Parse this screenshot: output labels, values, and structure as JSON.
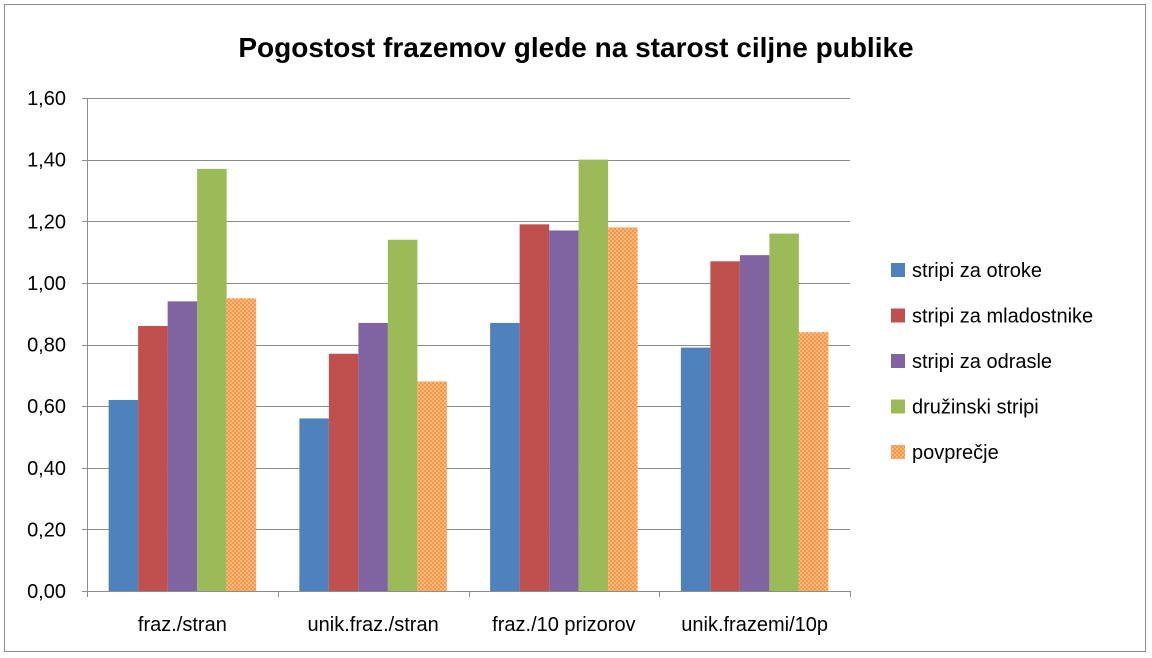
{
  "chart_data": {
    "type": "bar",
    "title": "Pogostost frazemov glede na starost ciljne publike",
    "xlabel": "",
    "ylabel": "",
    "ylim": [
      0,
      1.6
    ],
    "yticks": [
      "0,00",
      "0,20",
      "0,40",
      "0,60",
      "0,80",
      "1,00",
      "1,20",
      "1,40",
      "1,60"
    ],
    "ytick_values": [
      0,
      0.2,
      0.4,
      0.6,
      0.8,
      1.0,
      1.2,
      1.4,
      1.6
    ],
    "grid": true,
    "legend_position": "right",
    "categories": [
      "fraz./stran",
      "unik.fraz./stran",
      "fraz./10 prizorov",
      "unik.frazemi/10p"
    ],
    "series": [
      {
        "name": "stripi za otroke",
        "color": "#4f81bd",
        "pattern": "solid",
        "values": [
          0.62,
          0.56,
          0.87,
          0.79
        ]
      },
      {
        "name": "stripi za mladostnike",
        "color": "#c0504d",
        "pattern": "solid",
        "values": [
          0.86,
          0.77,
          1.19,
          1.07
        ]
      },
      {
        "name": "stripi za odrasle",
        "color": "#8064a2",
        "pattern": "solid",
        "values": [
          0.94,
          0.87,
          1.17,
          1.09
        ]
      },
      {
        "name": "družinski stripi",
        "color": "#9bbb59",
        "pattern": "solid",
        "values": [
          1.37,
          1.14,
          1.4,
          1.16
        ]
      },
      {
        "name": "povprečje",
        "color": "#f79646",
        "pattern": "dotted",
        "values": [
          0.95,
          0.68,
          1.18,
          0.84
        ]
      }
    ]
  }
}
